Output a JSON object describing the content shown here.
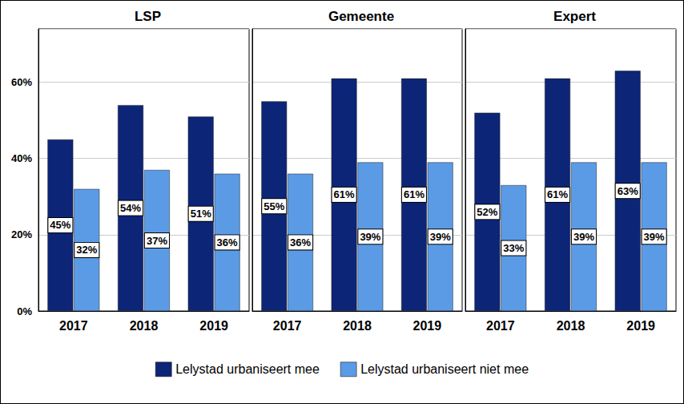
{
  "chart_data": [
    {
      "type": "bar",
      "title": "LSP",
      "categories": [
        "2017",
        "2018",
        "2019"
      ],
      "series": [
        {
          "name": "Lelystad urbaniseert mee",
          "color": "#0c2577",
          "values": [
            45,
            54,
            51
          ],
          "value_labels": [
            "45%",
            "54%",
            "51%"
          ]
        },
        {
          "name": "Lelystad urbaniseert niet mee",
          "color": "#5b9be6",
          "values": [
            32,
            37,
            36
          ],
          "value_labels": [
            "32%",
            "37%",
            "36%"
          ]
        }
      ],
      "ylim": [
        0,
        74
      ],
      "yticks": [
        {
          "value": 0,
          "label": "0%"
        },
        {
          "value": 20,
          "label": "20%"
        },
        {
          "value": 40,
          "label": "40%"
        },
        {
          "value": 60,
          "label": "60%"
        }
      ],
      "grid": true,
      "data_labels": true,
      "legend": "bottom"
    },
    {
      "type": "bar",
      "title": "Gemeente",
      "categories": [
        "2017",
        "2018",
        "2019"
      ],
      "series": [
        {
          "name": "Lelystad urbaniseert mee",
          "color": "#0c2577",
          "values": [
            55,
            61,
            61
          ],
          "value_labels": [
            "55%",
            "61%",
            "61%"
          ]
        },
        {
          "name": "Lelystad urbaniseert niet mee",
          "color": "#5b9be6",
          "values": [
            36,
            39,
            39
          ],
          "value_labels": [
            "36%",
            "39%",
            "39%"
          ]
        }
      ],
      "ylim": [
        0,
        74
      ],
      "yticks": [
        {
          "value": 0,
          "label": "0%"
        },
        {
          "value": 20,
          "label": "20%"
        },
        {
          "value": 40,
          "label": "40%"
        },
        {
          "value": 60,
          "label": "60%"
        }
      ],
      "grid": true,
      "data_labels": true,
      "legend": "bottom",
      "tick_labels": "x"
    },
    {
      "type": "bar",
      "title": "Expert",
      "categories": [
        "2017",
        "2018",
        "2019"
      ],
      "series": [
        {
          "name": "Lelystad urbaniseert mee",
          "color": "#0c2577",
          "values": [
            52,
            61,
            63
          ],
          "value_labels": [
            "52%",
            "61%",
            "63%"
          ]
        },
        {
          "name": "Lelystad urbaniseert niet mee",
          "color": "#5b9be6",
          "values": [
            33,
            39,
            39
          ],
          "value_labels": [
            "33%",
            "39%",
            "39%"
          ]
        }
      ],
      "ylim": [
        0,
        74
      ],
      "yticks": [
        {
          "value": 0,
          "label": "0%"
        },
        {
          "value": 20,
          "label": "20%"
        },
        {
          "value": 40,
          "label": "40%"
        },
        {
          "value": 60,
          "label": "60%"
        }
      ],
      "grid": true,
      "data_labels": true,
      "legend": "bottom",
      "tick_labels": "x"
    }
  ]
}
